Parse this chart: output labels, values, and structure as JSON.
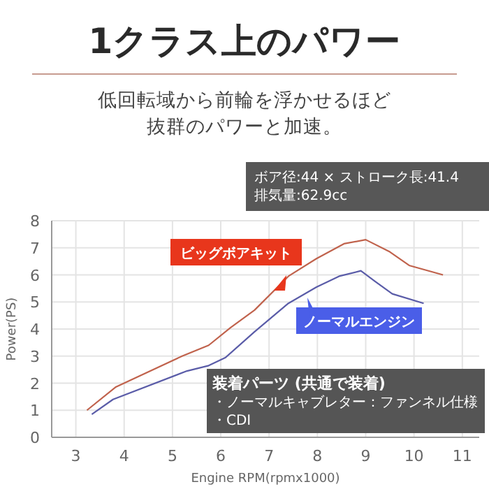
{
  "chart_data": {
    "type": "line",
    "title": "1クラス上のパワー",
    "subtitle": "低回転域から前輪を浮かせるほど抜群のパワーと加速。",
    "xlabel": "Engine RPM(rpmx1000)",
    "ylabel": "Power(PS)",
    "annotations": [
      "ボア径:44 × ストローク長:41.4",
      "排気量:62.9cc",
      "装着パーツ (共通で装着)",
      "・ノーマルキャブレター：ファンネル仕様",
      "・CDI"
    ],
    "series": [
      {
        "name": "ビッグボアキット",
        "color": "#c0624c",
        "x": [
          3.23,
          3.82,
          5.2,
          5.75,
          6.2,
          6.7,
          7.4,
          7.98,
          8.55,
          9.0,
          9.5,
          9.9,
          10.6
        ],
        "values": [
          1.0,
          1.85,
          3.0,
          3.4,
          4.05,
          4.7,
          5.95,
          6.6,
          7.15,
          7.3,
          6.85,
          6.35,
          6.0
        ]
      },
      {
        "name": "ノーマルエンジン",
        "color": "#5a5ca8",
        "x": [
          3.33,
          3.77,
          5.3,
          5.75,
          6.1,
          6.7,
          7.4,
          7.98,
          8.45,
          8.9,
          9.2,
          9.55,
          10.2
        ],
        "values": [
          0.85,
          1.4,
          2.45,
          2.65,
          2.95,
          3.9,
          4.95,
          5.55,
          5.95,
          6.15,
          5.75,
          5.3,
          4.95
        ]
      }
    ],
    "xlim": [
      2.5,
      11.35
    ],
    "xticks": [
      3,
      4,
      5,
      6,
      7,
      8,
      9,
      10,
      11
    ],
    "ylim": [
      0,
      8
    ],
    "yticks": [
      0,
      1,
      2,
      3,
      4,
      5,
      6,
      7,
      8
    ],
    "grid": true,
    "marker": "none",
    "line_style": "solid"
  }
}
